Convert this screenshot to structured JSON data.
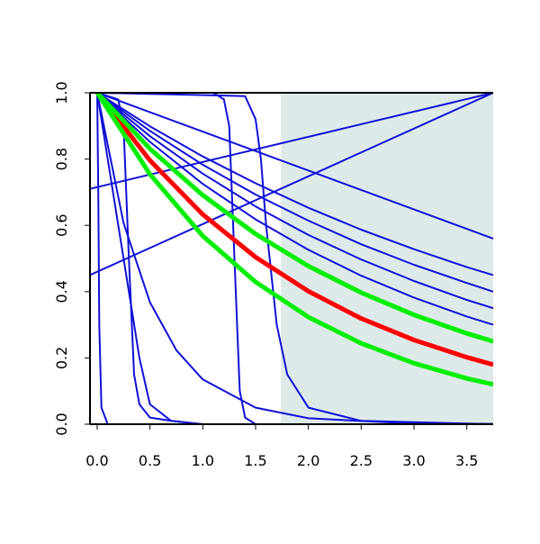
{
  "chart_data": {
    "type": "line",
    "xlim": [
      -0.068,
      3.75
    ],
    "ylim": [
      0,
      1
    ],
    "xticks": [
      {
        "value": 0,
        "label": "0.0"
      },
      {
        "value": 0.5,
        "label": "0.5"
      },
      {
        "value": 1,
        "label": "1.0"
      },
      {
        "value": 1.5,
        "label": "1.5"
      },
      {
        "value": 2,
        "label": "2.0"
      },
      {
        "value": 2.5,
        "label": "2.5"
      },
      {
        "value": 3,
        "label": "3.0"
      },
      {
        "value": 3.5,
        "label": "3.5"
      }
    ],
    "yticks": [
      {
        "value": 0,
        "label": "0.0"
      },
      {
        "value": 0.2,
        "label": "0.2"
      },
      {
        "value": 0.4,
        "label": "0.4"
      },
      {
        "value": 0.6,
        "label": "0.6"
      },
      {
        "value": 0.8,
        "label": "0.8"
      },
      {
        "value": 1,
        "label": "1.0"
      }
    ],
    "shade": {
      "xlim": [
        1.74,
        3.75
      ],
      "color": "#deeaea"
    },
    "series": [
      {
        "color": "#1010d8",
        "width": 2,
        "x": [
          0,
          0.5,
          1,
          1.5,
          2,
          2.5,
          3,
          3.5,
          3.75
        ],
        "values": [
          1,
          0.899,
          0.808,
          0.727,
          0.653,
          0.587,
          0.528,
          0.474,
          0.45
        ]
      },
      {
        "color": "#1010d8",
        "width": 2,
        "x": [
          0,
          0.5,
          1,
          1.5,
          2,
          2.5,
          3,
          3.5,
          3.75
        ],
        "values": [
          1,
          0.885,
          0.783,
          0.693,
          0.614,
          0.543,
          0.481,
          0.426,
          0.4
        ]
      },
      {
        "color": "#1010d8",
        "width": 2,
        "x": [
          0,
          0.5,
          1,
          1.5,
          2,
          2.5,
          3,
          3.5,
          3.75
        ],
        "values": [
          1,
          0.869,
          0.756,
          0.657,
          0.571,
          0.497,
          0.432,
          0.375,
          0.35
        ]
      },
      {
        "color": "#1010d8",
        "width": 2,
        "x": [
          0,
          0.5,
          1,
          1.5,
          2,
          2.5,
          3,
          3.5,
          3.75
        ],
        "values": [
          1,
          0.852,
          0.725,
          0.618,
          0.526,
          0.448,
          0.382,
          0.325,
          0.3
        ]
      },
      {
        "color": "#1010d8",
        "width": 2,
        "x": [
          0,
          3.75
        ],
        "values": [
          1,
          0.56
        ]
      },
      {
        "color": "#1010d8",
        "width": 2,
        "x": [
          -0.068,
          3.75
        ],
        "values": [
          0.71,
          1
        ]
      },
      {
        "color": "#1010d8",
        "width": 2,
        "x": [
          -0.068,
          3.75
        ],
        "values": [
          0.45,
          1
        ]
      },
      {
        "color": "#1010d8",
        "width": 2,
        "x": [
          0,
          1.1,
          1.2,
          1.25,
          1.3,
          1.35,
          1.4,
          1.5,
          3.75
        ],
        "values": [
          1,
          1,
          0.98,
          0.9,
          0.5,
          0.1,
          0.02,
          0,
          0
        ]
      },
      {
        "color": "#1010d8",
        "width": 2,
        "x": [
          0,
          1.4,
          1.5,
          1.55,
          1.6,
          1.7,
          1.8,
          2,
          2.5,
          3.75
        ],
        "values": [
          1,
          0.99,
          0.92,
          0.8,
          0.6,
          0.3,
          0.15,
          0.05,
          0.01,
          0
        ]
      },
      {
        "color": "#1010d8",
        "width": 2,
        "x": [
          0,
          0.2,
          0.25,
          0.3,
          0.35,
          0.4,
          0.5,
          0.7,
          1,
          3.75
        ],
        "values": [
          1,
          0.98,
          0.9,
          0.5,
          0.15,
          0.06,
          0.02,
          0.01,
          0,
          0
        ]
      },
      {
        "color": "#1010d8",
        "width": 2,
        "x": [
          0,
          0.01,
          0.02,
          0.04,
          0.1,
          3.75
        ],
        "values": [
          1,
          0.7,
          0.3,
          0.05,
          0,
          0
        ]
      },
      {
        "color": "#1010d8",
        "width": 2,
        "x": [
          0,
          0.1,
          0.2,
          0.3,
          0.4,
          0.5,
          0.7,
          1,
          3.75
        ],
        "values": [
          1,
          0.8,
          0.6,
          0.4,
          0.2,
          0.06,
          0.01,
          0,
          0
        ]
      },
      {
        "color": "#1010d8",
        "width": 2,
        "x": [
          0,
          0.25,
          0.5,
          0.75,
          1,
          1.5,
          2,
          3,
          3.75
        ],
        "values": [
          1,
          0.607,
          0.368,
          0.223,
          0.135,
          0.05,
          0.018,
          0.002,
          0.001
        ]
      },
      {
        "color": "#ff0000",
        "width": 5,
        "x": [
          0,
          0.5,
          1,
          1.5,
          2,
          2.5,
          3,
          3.5,
          3.75
        ],
        "values": [
          1,
          0.796,
          0.633,
          0.504,
          0.401,
          0.319,
          0.254,
          0.202,
          0.18
        ]
      },
      {
        "color": "#00ee00",
        "width": 5,
        "x": [
          0,
          0.5,
          1,
          1.5,
          2,
          2.5,
          3,
          3.5,
          3.75
        ],
        "values": [
          1,
          0.754,
          0.568,
          0.429,
          0.323,
          0.244,
          0.184,
          0.138,
          0.12
        ]
      },
      {
        "color": "#00ee00",
        "width": 5,
        "x": [
          0,
          0.5,
          1,
          1.5,
          2,
          2.5,
          3,
          3.5,
          3.75
        ],
        "values": [
          1,
          0.831,
          0.691,
          0.574,
          0.477,
          0.397,
          0.33,
          0.274,
          0.25
        ]
      }
    ]
  }
}
